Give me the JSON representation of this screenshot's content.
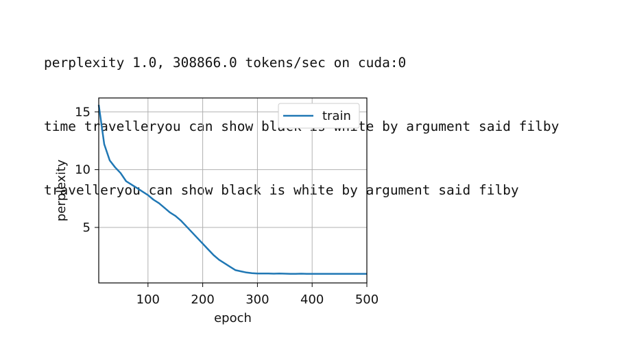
{
  "output_lines": [
    "perplexity 1.0, 308866.0 tokens/sec on cuda:0",
    "time travelleryou can show black is white by argument said filby",
    "travelleryou can show black is white by argument said filby"
  ],
  "chart_data": {
    "type": "line",
    "xlabel": "epoch",
    "ylabel": "perplexity",
    "xlim": [
      10,
      500
    ],
    "ylim": [
      0.2,
      16.2
    ],
    "xticks": [
      100,
      200,
      300,
      400,
      500
    ],
    "yticks": [
      5,
      10,
      15
    ],
    "grid": true,
    "legend_position": "top-right",
    "series": [
      {
        "name": "train",
        "color": "#1f77b4",
        "x": [
          10,
          20,
          30,
          40,
          50,
          60,
          70,
          80,
          90,
          100,
          110,
          120,
          130,
          140,
          150,
          160,
          170,
          180,
          190,
          200,
          210,
          220,
          230,
          240,
          250,
          260,
          270,
          280,
          290,
          300,
          310,
          320,
          330,
          340,
          350,
          360,
          370,
          380,
          390,
          400,
          410,
          420,
          430,
          440,
          450,
          460,
          470,
          480,
          490,
          500
        ],
        "values": [
          15.6,
          12.2,
          10.8,
          10.2,
          9.7,
          9.0,
          8.7,
          8.4,
          8.1,
          7.8,
          7.4,
          7.1,
          6.7,
          6.3,
          6.0,
          5.6,
          5.1,
          4.6,
          4.1,
          3.6,
          3.1,
          2.6,
          2.2,
          1.9,
          1.6,
          1.3,
          1.2,
          1.1,
          1.05,
          1.02,
          1.01,
          1.01,
          1.0,
          1.01,
          1.0,
          0.99,
          0.99,
          1.0,
          0.99,
          0.99,
          0.99,
          0.99,
          0.99,
          0.98,
          0.99,
          0.98,
          0.98,
          0.98,
          0.98,
          0.98
        ]
      }
    ]
  }
}
